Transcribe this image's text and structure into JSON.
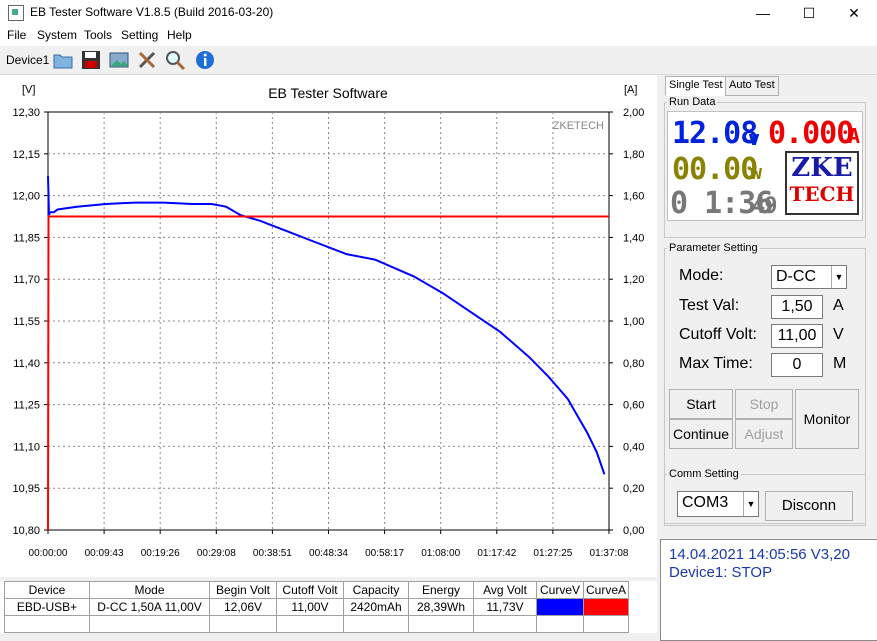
{
  "window": {
    "title": "EB Tester Software V1.8.5 (Build 2016-03-20)",
    "controls": [
      "—",
      "☐",
      "✕"
    ]
  },
  "menu": [
    "File",
    "System",
    "Tools",
    "Setting",
    "Help"
  ],
  "toolbar": {
    "device_tab": "Device1"
  },
  "chart_data": {
    "type": "line",
    "title": "EB Tester Software",
    "watermark": "ZKETECH",
    "ylabel_left": "[V]",
    "ylabel_right": "[A]",
    "ylim_left": [
      10.8,
      12.3
    ],
    "ylim_right": [
      0,
      2.0
    ],
    "yticks_left": [
      "12,30",
      "12,15",
      "12,00",
      "11,85",
      "11,70",
      "11,55",
      "11,40",
      "11,25",
      "11,10",
      "10,95",
      "10,80"
    ],
    "yticks_right": [
      "2,00",
      "1,80",
      "1,60",
      "1,40",
      "1,20",
      "1,00",
      "0,80",
      "0,60",
      "0,40",
      "0,20",
      "0,00"
    ],
    "xticks": [
      "00:00:00",
      "00:09:43",
      "00:19:26",
      "00:29:08",
      "00:38:51",
      "00:48:34",
      "00:58:17",
      "01:08:00",
      "01:17:42",
      "01:27:25",
      "01:37:08"
    ],
    "xlim_seconds": [
      0,
      5828
    ],
    "grid": true,
    "series": [
      {
        "color": "#0000ff",
        "axis": "left",
        "x": [
          0,
          10,
          20,
          60,
          100,
          300,
          600,
          900,
          1200,
          1500,
          1700,
          1850,
          2000,
          2200,
          2500,
          2800,
          3100,
          3400,
          3600,
          3800,
          4100,
          4400,
          4700,
          5000,
          5200,
          5300,
          5400,
          5500,
          5600,
          5700,
          5780
        ],
        "y": [
          12.07,
          11.93,
          11.94,
          11.94,
          11.95,
          11.96,
          11.97,
          11.975,
          11.975,
          11.97,
          11.97,
          11.96,
          11.93,
          11.91,
          11.87,
          11.83,
          11.79,
          11.77,
          11.74,
          11.71,
          11.65,
          11.58,
          11.51,
          11.42,
          11.35,
          11.31,
          11.27,
          11.21,
          11.15,
          11.08,
          11.0
        ]
      },
      {
        "color": "#ff0000",
        "axis": "right",
        "x": [
          0,
          5,
          10,
          5828
        ],
        "y": [
          0.0,
          1.5,
          1.5,
          1.5
        ]
      }
    ]
  },
  "table": {
    "headers": [
      "Device",
      "Mode",
      "Begin Volt",
      "Cutoff Volt",
      "Capacity",
      "Energy",
      "Avg Volt",
      "CurveV",
      "CurveA"
    ],
    "rows": [
      [
        "EBD-USB+",
        "D-CC  1,50A  11,00V",
        "12,06V",
        "11,00V",
        "2420mAh",
        "28,39Wh",
        "11,73V",
        "",
        ""
      ]
    ],
    "curve_colors": [
      "#0000ff",
      "#ff0000"
    ]
  },
  "right": {
    "tabs": [
      "Single Test",
      "Auto Test"
    ],
    "run_data_label": "Run Data",
    "voltage": "12.08",
    "voltage_unit": "v",
    "current": "0.000",
    "current_unit": "A",
    "power": "00.00",
    "power_unit": "w",
    "time_main": "0 1:36",
    "time_sec": "49",
    "logo_top": "ZKE",
    "logo_bottom": "TECH",
    "param_label": "Parameter Setting",
    "mode_label": "Mode:",
    "mode_value": "D-CC",
    "test_val_label": "Test Val:",
    "test_val": "1,50",
    "test_val_unit": "A",
    "cutoff_label": "Cutoff Volt:",
    "cutoff_val": "11,00",
    "cutoff_unit": "V",
    "maxtime_label": "Max Time:",
    "maxtime_val": "0",
    "maxtime_unit": "M",
    "btn_start": "Start",
    "btn_stop": "Stop",
    "btn_continue": "Continue",
    "btn_adjust": "Adjust",
    "btn_monitor": "Monitor",
    "comm_label": "Comm Setting",
    "comm_port": "COM3",
    "btn_disconn": "Disconn",
    "status_line1": "14.04.2021 14:05:56  V3,20",
    "status_line2": "Device1: STOP"
  }
}
